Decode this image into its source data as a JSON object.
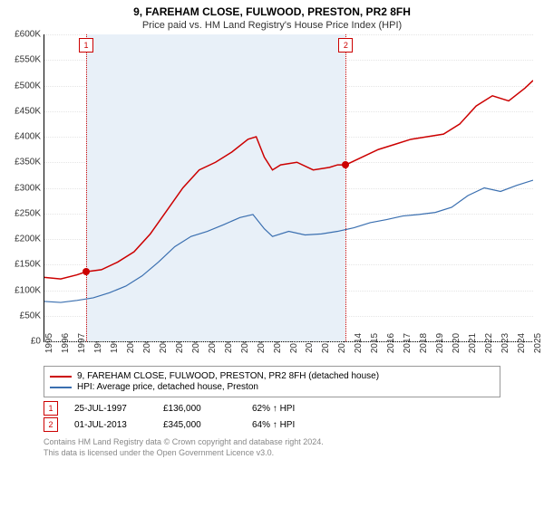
{
  "title": "9, FAREHAM CLOSE, FULWOOD, PRESTON, PR2 8FH",
  "subtitle": "Price paid vs. HM Land Registry's House Price Index (HPI)",
  "chart": {
    "type": "line",
    "ylim": [
      0,
      600000
    ],
    "ytick_step": 50000,
    "ylabel_prefix": "£",
    "ylabel_suffix": "K",
    "xlim": [
      1995,
      2025
    ],
    "xtick_step": 1,
    "background_color": "#ffffff",
    "grid_color": "#e5e5e5",
    "series": [
      {
        "name": "9, FAREHAM CLOSE, FULWOOD, PRESTON, PR2 8FH (detached house)",
        "color": "#cc0000",
        "line_width": 1.5,
        "points": [
          [
            1995.0,
            125000
          ],
          [
            1996.0,
            122000
          ],
          [
            1997.0,
            130000
          ],
          [
            1997.56,
            136000
          ],
          [
            1998.5,
            140000
          ],
          [
            1999.5,
            155000
          ],
          [
            2000.5,
            175000
          ],
          [
            2001.5,
            210000
          ],
          [
            2002.5,
            255000
          ],
          [
            2003.5,
            300000
          ],
          [
            2004.5,
            335000
          ],
          [
            2005.5,
            350000
          ],
          [
            2006.5,
            370000
          ],
          [
            2007.5,
            395000
          ],
          [
            2008.0,
            400000
          ],
          [
            2008.5,
            360000
          ],
          [
            2009.0,
            335000
          ],
          [
            2009.5,
            345000
          ],
          [
            2010.5,
            350000
          ],
          [
            2011.5,
            335000
          ],
          [
            2012.5,
            340000
          ],
          [
            2013.0,
            345000
          ],
          [
            2013.5,
            345000
          ],
          [
            2014.5,
            360000
          ],
          [
            2015.5,
            375000
          ],
          [
            2016.5,
            385000
          ],
          [
            2017.5,
            395000
          ],
          [
            2018.5,
            400000
          ],
          [
            2019.5,
            405000
          ],
          [
            2020.5,
            425000
          ],
          [
            2021.5,
            460000
          ],
          [
            2022.5,
            480000
          ],
          [
            2023.5,
            470000
          ],
          [
            2024.5,
            495000
          ],
          [
            2025.0,
            510000
          ]
        ]
      },
      {
        "name": "HPI: Average price, detached house, Preston",
        "color": "#3a6fb0",
        "line_width": 1.2,
        "points": [
          [
            1995.0,
            78000
          ],
          [
            1996.0,
            76000
          ],
          [
            1997.0,
            80000
          ],
          [
            1998.0,
            85000
          ],
          [
            1999.0,
            95000
          ],
          [
            2000.0,
            108000
          ],
          [
            2001.0,
            128000
          ],
          [
            2002.0,
            155000
          ],
          [
            2003.0,
            185000
          ],
          [
            2004.0,
            205000
          ],
          [
            2005.0,
            215000
          ],
          [
            2006.0,
            228000
          ],
          [
            2007.0,
            242000
          ],
          [
            2007.8,
            248000
          ],
          [
            2008.5,
            220000
          ],
          [
            2009.0,
            205000
          ],
          [
            2010.0,
            215000
          ],
          [
            2011.0,
            208000
          ],
          [
            2012.0,
            210000
          ],
          [
            2013.0,
            215000
          ],
          [
            2014.0,
            222000
          ],
          [
            2015.0,
            232000
          ],
          [
            2016.0,
            238000
          ],
          [
            2017.0,
            245000
          ],
          [
            2018.0,
            248000
          ],
          [
            2019.0,
            252000
          ],
          [
            2020.0,
            262000
          ],
          [
            2021.0,
            285000
          ],
          [
            2022.0,
            300000
          ],
          [
            2023.0,
            293000
          ],
          [
            2024.0,
            305000
          ],
          [
            2025.0,
            315000
          ]
        ]
      }
    ],
    "shade_band": {
      "from": 1997.56,
      "to": 2013.5,
      "color": "#e8f0f8"
    },
    "markers": [
      {
        "label": "1",
        "x": 1997.56,
        "y": 136000,
        "color": "#cc0000"
      },
      {
        "label": "2",
        "x": 2013.5,
        "y": 345000,
        "color": "#cc0000"
      }
    ]
  },
  "legend": [
    {
      "color": "#cc0000",
      "label": "9, FAREHAM CLOSE, FULWOOD, PRESTON, PR2 8FH (detached house)"
    },
    {
      "color": "#3a6fb0",
      "label": "HPI: Average price, detached house, Preston"
    }
  ],
  "transactions": [
    {
      "marker": "1",
      "color": "#cc0000",
      "date": "25-JUL-1997",
      "price": "£136,000",
      "delta": "62% ↑ HPI"
    },
    {
      "marker": "2",
      "color": "#cc0000",
      "date": "01-JUL-2013",
      "price": "£345,000",
      "delta": "64% ↑ HPI"
    }
  ],
  "footer": {
    "line1": "Contains HM Land Registry data © Crown copyright and database right 2024.",
    "line2": "This data is licensed under the Open Government Licence v3.0."
  }
}
